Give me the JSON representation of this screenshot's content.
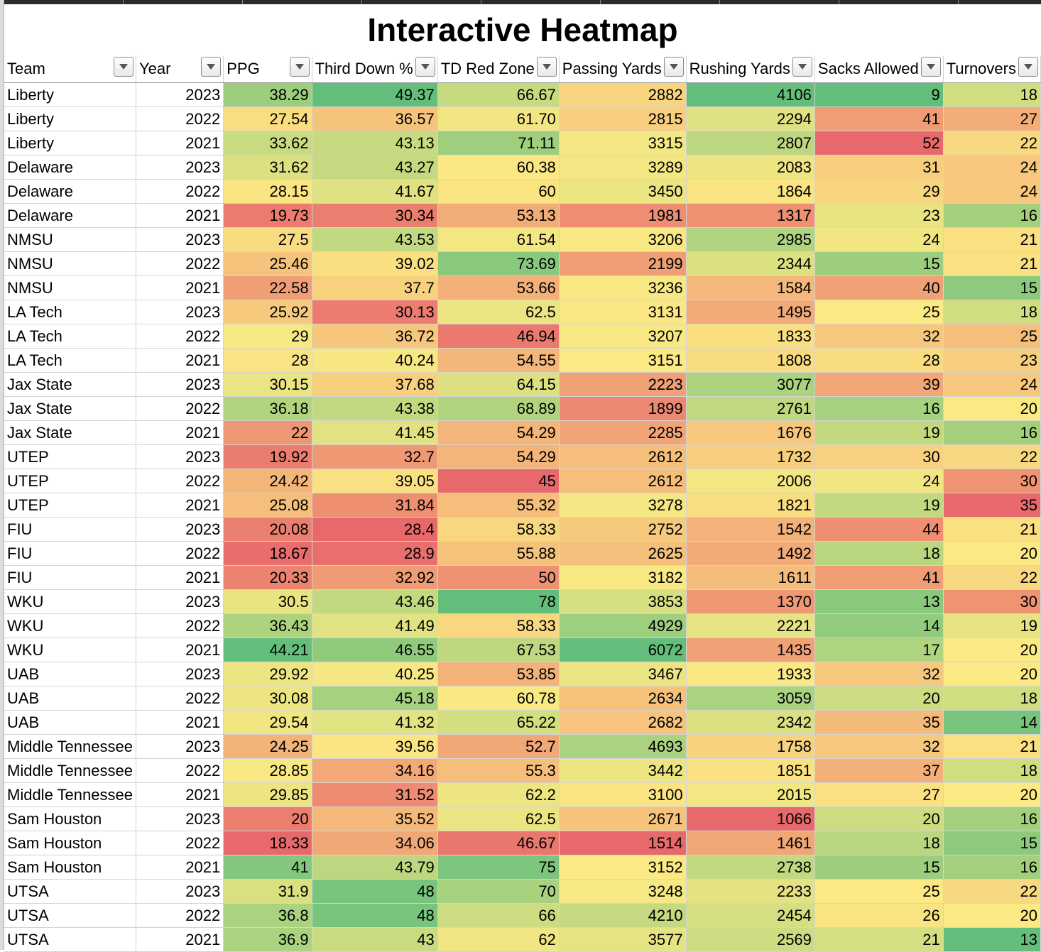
{
  "sheet": {
    "title": "Interactive Heatmap"
  },
  "colors": {
    "low": "#e8696b",
    "mid": "#fbe983",
    "high": "#63be7b"
  },
  "columns": [
    {
      "key": "team",
      "label": "Team",
      "type": "text"
    },
    {
      "key": "year",
      "label": "Year",
      "type": "plain"
    },
    {
      "key": "ppg",
      "label": "PPG",
      "type": "heat",
      "higher_is_better": true
    },
    {
      "key": "third_down",
      "label": "Third Down %",
      "type": "heat",
      "higher_is_better": true
    },
    {
      "key": "td_red_zone",
      "label": "TD Red Zone",
      "type": "heat",
      "higher_is_better": true
    },
    {
      "key": "passing_yards",
      "label": "Passing Yards",
      "type": "heat",
      "higher_is_better": true
    },
    {
      "key": "rushing_yards",
      "label": "Rushing Yards",
      "type": "heat",
      "higher_is_better": true
    },
    {
      "key": "sacks_allowed",
      "label": "Sacks Allowed",
      "type": "heat",
      "higher_is_better": false
    },
    {
      "key": "turnovers",
      "label": "Turnovers",
      "type": "heat",
      "higher_is_better": false
    }
  ],
  "rows": [
    [
      "Liberty",
      "2023",
      "38.29",
      "49.37",
      "66.67",
      "2882",
      "4106",
      "9",
      "18"
    ],
    [
      "Liberty",
      "2022",
      "27.54",
      "36.57",
      "61.70",
      "2815",
      "2294",
      "41",
      "27"
    ],
    [
      "Liberty",
      "2021",
      "33.62",
      "43.13",
      "71.11",
      "3315",
      "2807",
      "52",
      "22"
    ],
    [
      "Delaware",
      "2023",
      "31.62",
      "43.27",
      "60.38",
      "3289",
      "2083",
      "31",
      "24"
    ],
    [
      "Delaware",
      "2022",
      "28.15",
      "41.67",
      "60",
      "3450",
      "1864",
      "29",
      "24"
    ],
    [
      "Delaware",
      "2021",
      "19.73",
      "30.34",
      "53.13",
      "1981",
      "1317",
      "23",
      "16"
    ],
    [
      "NMSU",
      "2023",
      "27.5",
      "43.53",
      "61.54",
      "3206",
      "2985",
      "24",
      "21"
    ],
    [
      "NMSU",
      "2022",
      "25.46",
      "39.02",
      "73.69",
      "2199",
      "2344",
      "15",
      "21"
    ],
    [
      "NMSU",
      "2021",
      "22.58",
      "37.7",
      "53.66",
      "3236",
      "1584",
      "40",
      "15"
    ],
    [
      "LA Tech",
      "2023",
      "25.92",
      "30.13",
      "62.5",
      "3131",
      "1495",
      "25",
      "18"
    ],
    [
      "LA Tech",
      "2022",
      "29",
      "36.72",
      "46.94",
      "3207",
      "1833",
      "32",
      "25"
    ],
    [
      "LA Tech",
      "2021",
      "28",
      "40.24",
      "54.55",
      "3151",
      "1808",
      "28",
      "23"
    ],
    [
      "Jax State",
      "2023",
      "30.15",
      "37.68",
      "64.15",
      "2223",
      "3077",
      "39",
      "24"
    ],
    [
      "Jax State",
      "2022",
      "36.18",
      "43.38",
      "68.89",
      "1899",
      "2761",
      "16",
      "20"
    ],
    [
      "Jax State",
      "2021",
      "22",
      "41.45",
      "54.29",
      "2285",
      "1676",
      "19",
      "16"
    ],
    [
      "UTEP",
      "2023",
      "19.92",
      "32.7",
      "54.29",
      "2612",
      "1732",
      "30",
      "22"
    ],
    [
      "UTEP",
      "2022",
      "24.42",
      "39.05",
      "45",
      "2612",
      "2006",
      "24",
      "30"
    ],
    [
      "UTEP",
      "2021",
      "25.08",
      "31.84",
      "55.32",
      "3278",
      "1821",
      "19",
      "35"
    ],
    [
      "FIU",
      "2023",
      "20.08",
      "28.4",
      "58.33",
      "2752",
      "1542",
      "44",
      "21"
    ],
    [
      "FIU",
      "2022",
      "18.67",
      "28.9",
      "55.88",
      "2625",
      "1492",
      "18",
      "20"
    ],
    [
      "FIU",
      "2021",
      "20.33",
      "32.92",
      "50",
      "3182",
      "1611",
      "41",
      "22"
    ],
    [
      "WKU",
      "2023",
      "30.5",
      "43.46",
      "78",
      "3853",
      "1370",
      "13",
      "30"
    ],
    [
      "WKU",
      "2022",
      "36.43",
      "41.49",
      "58.33",
      "4929",
      "2221",
      "14",
      "19"
    ],
    [
      "WKU",
      "2021",
      "44.21",
      "46.55",
      "67.53",
      "6072",
      "1435",
      "17",
      "20"
    ],
    [
      "UAB",
      "2023",
      "29.92",
      "40.25",
      "53.85",
      "3467",
      "1933",
      "32",
      "20"
    ],
    [
      "UAB",
      "2022",
      "30.08",
      "45.18",
      "60.78",
      "2634",
      "3059",
      "20",
      "18"
    ],
    [
      "UAB",
      "2021",
      "29.54",
      "41.32",
      "65.22",
      "2682",
      "2342",
      "35",
      "14"
    ],
    [
      "Middle Tennessee",
      "2023",
      "24.25",
      "39.56",
      "52.7",
      "4693",
      "1758",
      "32",
      "21"
    ],
    [
      "Middle Tennessee",
      "2022",
      "28.85",
      "34.16",
      "55.3",
      "3442",
      "1851",
      "37",
      "18"
    ],
    [
      "Middle Tennessee",
      "2021",
      "29.85",
      "31.52",
      "62.2",
      "3100",
      "2015",
      "27",
      "20"
    ],
    [
      "Sam Houston",
      "2023",
      "20",
      "35.52",
      "62.5",
      "2671",
      "1066",
      "20",
      "16"
    ],
    [
      "Sam Houston",
      "2022",
      "18.33",
      "34.06",
      "46.67",
      "1514",
      "1461",
      "18",
      "15"
    ],
    [
      "Sam Houston",
      "2021",
      "41",
      "43.79",
      "75",
      "3152",
      "2738",
      "15",
      "16"
    ],
    [
      "UTSA",
      "2023",
      "31.9",
      "48",
      "70",
      "3248",
      "2233",
      "25",
      "22"
    ],
    [
      "UTSA",
      "2022",
      "36.8",
      "48",
      "66",
      "4210",
      "2454",
      "26",
      "20"
    ],
    [
      "UTSA",
      "2021",
      "36.9",
      "43",
      "62",
      "3577",
      "2569",
      "21",
      "13"
    ]
  ]
}
